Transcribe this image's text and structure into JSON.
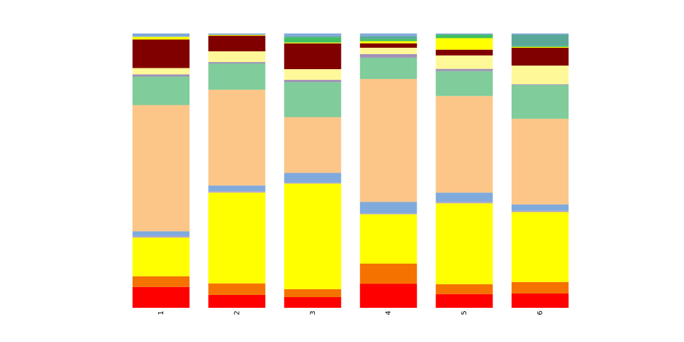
{
  "chart_data": {
    "type": "bar",
    "stacked": true,
    "normalized": true,
    "categories": [
      "1",
      "2",
      "3",
      "4",
      "5",
      "6"
    ],
    "ylim": [
      0,
      1
    ],
    "grid": false,
    "legend": "none",
    "x_tick_rotation": 90,
    "series": [
      {
        "color": "#ff0000",
        "values": [
          0.076,
          0.047,
          0.039,
          0.088,
          0.05,
          0.052
        ]
      },
      {
        "color": "#f57200",
        "values": [
          0.039,
          0.042,
          0.029,
          0.073,
          0.036,
          0.042
        ]
      },
      {
        "color": "#ffff00",
        "values": [
          0.141,
          0.331,
          0.385,
          0.18,
          0.295,
          0.255
        ]
      },
      {
        "color": "#b8a4c8",
        "values": [
          0.005,
          0.005,
          0.003,
          0.003,
          0.005,
          0.005
        ]
      },
      {
        "color": "#80aadc",
        "values": [
          0.018,
          0.021,
          0.036,
          0.042,
          0.034,
          0.023
        ]
      },
      {
        "color": "#fcc688",
        "values": [
          0.46,
          0.349,
          0.203,
          0.448,
          0.352,
          0.312
        ]
      },
      {
        "color": "#80cc9a",
        "values": [
          0.104,
          0.096,
          0.128,
          0.078,
          0.091,
          0.123
        ]
      },
      {
        "color": "#a090b8",
        "values": [
          0.008,
          0.005,
          0.008,
          0.013,
          0.008,
          0.003
        ]
      },
      {
        "color": "#fff898",
        "values": [
          0.023,
          0.039,
          0.039,
          0.023,
          0.049,
          0.068
        ]
      },
      {
        "color": "#800000",
        "values": [
          0.104,
          0.057,
          0.094,
          0.016,
          0.021,
          0.065
        ]
      },
      {
        "color": "#ffff00",
        "values": [
          0.01,
          0.003,
          0.003,
          0.008,
          0.042,
          0.003
        ]
      },
      {
        "color": "#40c060",
        "values": [
          0.0,
          0.0,
          0.018,
          0.008,
          0.013,
          0.003
        ]
      },
      {
        "color": "#5aa898",
        "values": [
          0.0,
          0.0,
          0.005,
          0.01,
          0.0,
          0.042
        ]
      },
      {
        "color": "#80aadc",
        "values": [
          0.012,
          0.005,
          0.01,
          0.01,
          0.004,
          0.004
        ]
      }
    ]
  }
}
